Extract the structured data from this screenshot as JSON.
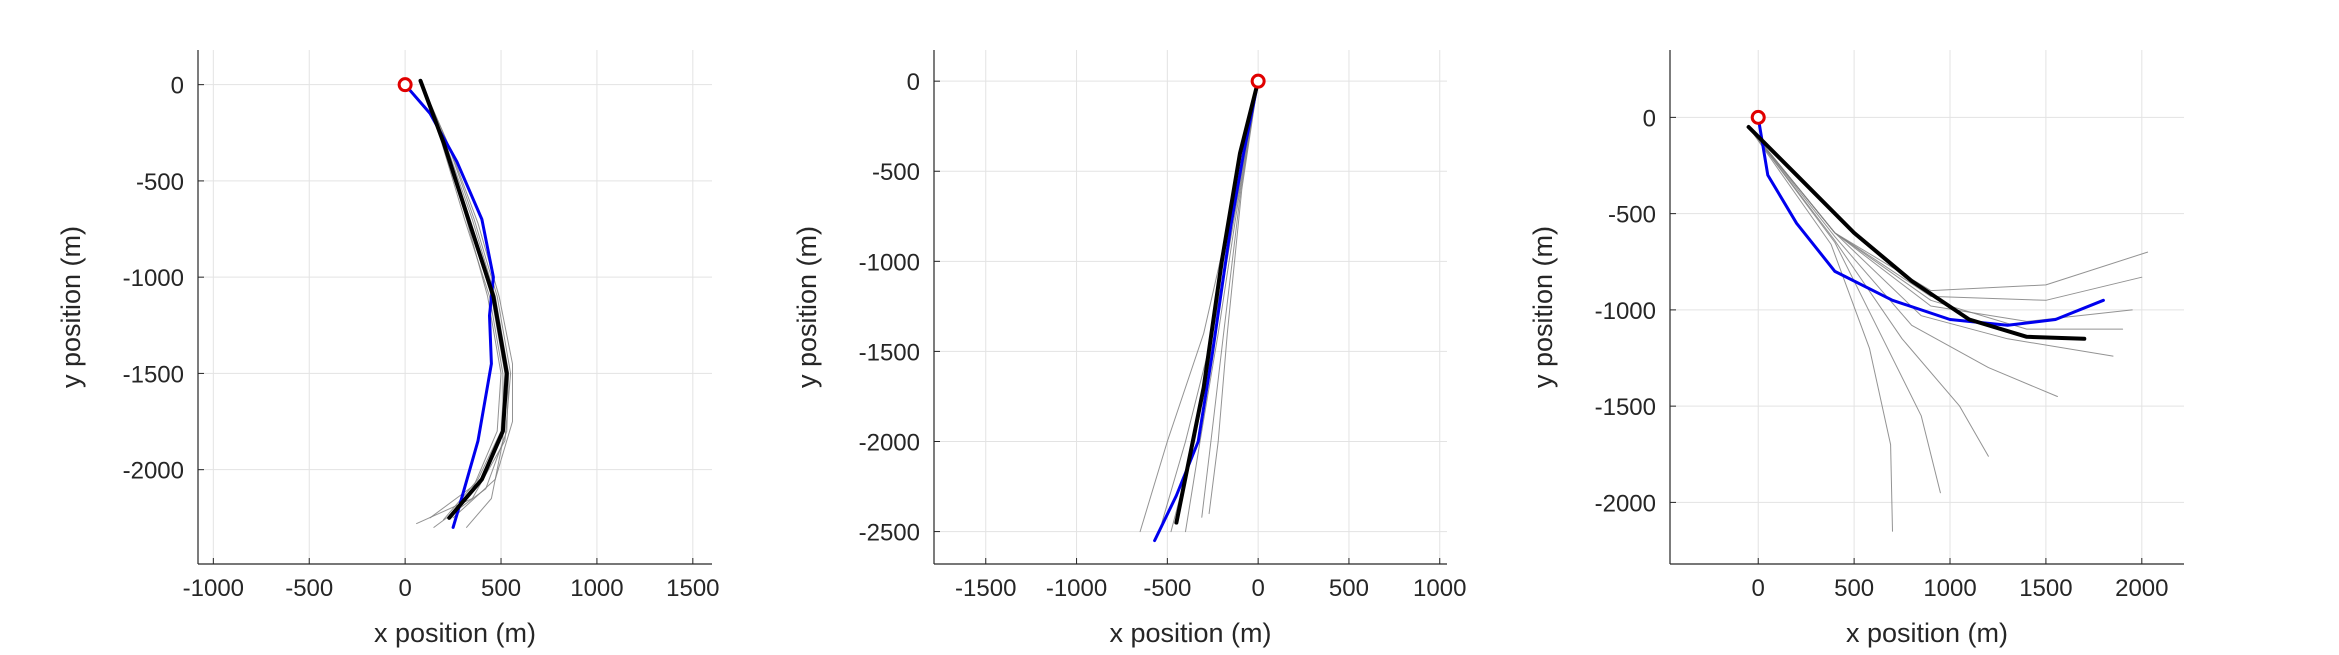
{
  "chart_data": [
    {
      "type": "line",
      "xlabel": "x position (m)",
      "ylabel": "y position (m)",
      "grid": true,
      "xlim": [
        -1080,
        1600
      ],
      "ylim": [
        -2490,
        180
      ],
      "xticks": [
        -1000,
        -500,
        0,
        500,
        1000,
        1500
      ],
      "yticks": [
        0,
        -500,
        -1000,
        -1500,
        -2000
      ],
      "series": [
        {
          "color": "#808080",
          "width": 1,
          "x": [
            80,
            220,
            360,
            480,
            550,
            520,
            350,
            60
          ],
          "values": [
            20,
            -300,
            -700,
            -1100,
            -1500,
            -1850,
            -2150,
            -2280
          ]
        },
        {
          "color": "#808080",
          "width": 1,
          "x": [
            80,
            210,
            350,
            470,
            540,
            530,
            420,
            150
          ],
          "values": [
            20,
            -300,
            -700,
            -1100,
            -1500,
            -1800,
            -2100,
            -2300
          ]
        },
        {
          "color": "#808080",
          "width": 1,
          "x": [
            80,
            200,
            330,
            450,
            520,
            500,
            380,
            200
          ],
          "values": [
            20,
            -300,
            -700,
            -1100,
            -1500,
            -1800,
            -2050,
            -2260
          ]
        },
        {
          "color": "#808080",
          "width": 1,
          "x": [
            80,
            190,
            310,
            440,
            510,
            510,
            450,
            320
          ],
          "values": [
            20,
            -300,
            -700,
            -1100,
            -1500,
            -1850,
            -2150,
            -2300
          ]
        },
        {
          "color": "#808080",
          "width": 1,
          "x": [
            80,
            230,
            380,
            490,
            560,
            560,
            470,
            250
          ],
          "values": [
            20,
            -320,
            -720,
            -1100,
            -1450,
            -1750,
            -2050,
            -2250
          ]
        },
        {
          "color": "#808080",
          "width": 1,
          "x": [
            80,
            200,
            320,
            430,
            500,
            480,
            360,
            130
          ],
          "values": [
            20,
            -300,
            -700,
            -1100,
            -1500,
            -1800,
            -2080,
            -2250
          ]
        },
        {
          "color": "#0000ee",
          "width": 3,
          "x": [
            0,
            130,
            270,
            400,
            460,
            440,
            450,
            380,
            280,
            250
          ],
          "values": [
            0,
            -150,
            -400,
            -700,
            -1000,
            -1200,
            -1450,
            -1850,
            -2200,
            -2300
          ]
        },
        {
          "color": "#000000",
          "width": 4,
          "x": [
            80,
            200,
            330,
            460,
            530,
            510,
            400,
            230
          ],
          "values": [
            20,
            -300,
            -700,
            -1100,
            -1500,
            -1800,
            -2050,
            -2250
          ]
        },
        {
          "color": "#e00000",
          "marker": "circle",
          "x": [
            0
          ],
          "values": [
            0
          ]
        }
      ]
    },
    {
      "type": "line",
      "xlabel": "x position (m)",
      "ylabel": "y position (m)",
      "grid": true,
      "xlim": [
        -1785,
        1040
      ],
      "ylim": [
        -2680,
        173
      ],
      "xticks": [
        -1500,
        -1000,
        -500,
        0,
        500,
        1000
      ],
      "yticks": [
        0,
        -500,
        -1000,
        -1500,
        -2000,
        -2500
      ],
      "series": [
        {
          "color": "#808080",
          "width": 1,
          "x": [
            0,
            -120,
            -300,
            -500,
            -650
          ],
          "values": [
            0,
            -600,
            -1400,
            -2000,
            -2500
          ]
        },
        {
          "color": "#808080",
          "width": 1,
          "x": [
            0,
            -110,
            -250,
            -400,
            -530
          ],
          "values": [
            0,
            -600,
            -1400,
            -2000,
            -2450
          ]
        },
        {
          "color": "#808080",
          "width": 1,
          "x": [
            0,
            -100,
            -220,
            -320,
            -400
          ],
          "values": [
            0,
            -600,
            -1400,
            -2000,
            -2500
          ]
        },
        {
          "color": "#808080",
          "width": 1,
          "x": [
            0,
            -90,
            -170,
            -220,
            -270
          ],
          "values": [
            0,
            -600,
            -1400,
            -2000,
            -2400
          ]
        },
        {
          "color": "#808080",
          "width": 1,
          "x": [
            0,
            -95,
            -190,
            -260,
            -310
          ],
          "values": [
            0,
            -600,
            -1400,
            -2000,
            -2420
          ]
        },
        {
          "color": "#808080",
          "width": 1,
          "x": [
            0,
            -105,
            -240,
            -350,
            -480
          ],
          "values": [
            0,
            -600,
            -1400,
            -2000,
            -2500
          ]
        },
        {
          "color": "#0000ee",
          "width": 3,
          "x": [
            0,
            -80,
            -150,
            -250,
            -330,
            -450,
            -570
          ],
          "values": [
            0,
            -400,
            -800,
            -1500,
            -2000,
            -2300,
            -2550
          ]
        },
        {
          "color": "#000000",
          "width": 4,
          "x": [
            0,
            -100,
            -200,
            -300,
            -400,
            -450
          ],
          "values": [
            0,
            -400,
            -1000,
            -1700,
            -2200,
            -2450
          ]
        },
        {
          "color": "#e00000",
          "marker": "circle",
          "x": [
            0
          ],
          "values": [
            0
          ]
        }
      ]
    },
    {
      "type": "line",
      "xlabel": "x position (m)",
      "ylabel": "y position (m)",
      "grid": true,
      "xlim": [
        -460,
        2220
      ],
      "ylim": [
        -2320,
        350
      ],
      "xticks": [
        0,
        500,
        1000,
        1500,
        2000
      ],
      "yticks": [
        0,
        -500,
        -1000,
        -1500,
        -2000
      ],
      "series": [
        {
          "color": "#808080",
          "width": 1,
          "x": [
            -50,
            400,
            900,
            1500,
            2030
          ],
          "values": [
            -50,
            -600,
            -900,
            -870,
            -700
          ]
        },
        {
          "color": "#808080",
          "width": 1,
          "x": [
            -50,
            400,
            900,
            1500,
            2000
          ],
          "values": [
            -50,
            -600,
            -930,
            -950,
            -830
          ]
        },
        {
          "color": "#808080",
          "width": 1,
          "x": [
            -50,
            400,
            900,
            1400,
            1950
          ],
          "values": [
            -50,
            -600,
            -980,
            -1060,
            -1000
          ]
        },
        {
          "color": "#808080",
          "width": 1,
          "x": [
            -50,
            400,
            850,
            1300,
            1850
          ],
          "values": [
            -50,
            -600,
            -1030,
            -1150,
            -1240
          ]
        },
        {
          "color": "#808080",
          "width": 1,
          "x": [
            -50,
            400,
            800,
            1200,
            1560
          ],
          "values": [
            -50,
            -620,
            -1080,
            -1300,
            -1450
          ]
        },
        {
          "color": "#808080",
          "width": 1,
          "x": [
            -50,
            400,
            750,
            1050,
            1200
          ],
          "values": [
            -50,
            -640,
            -1150,
            -1500,
            -1760
          ]
        },
        {
          "color": "#808080",
          "width": 1,
          "x": [
            -50,
            400,
            650,
            850,
            950
          ],
          "values": [
            -50,
            -650,
            -1150,
            -1550,
            -1950
          ]
        },
        {
          "color": "#808080",
          "width": 1,
          "x": [
            -50,
            380,
            580,
            690,
            700
          ],
          "values": [
            -50,
            -660,
            -1200,
            -1700,
            -2150
          ]
        },
        {
          "color": "#808080",
          "width": 1,
          "x": [
            -50,
            400,
            900,
            1400,
            1900
          ],
          "values": [
            -50,
            -600,
            -950,
            -1100,
            -1100
          ]
        },
        {
          "color": "#0000ee",
          "width": 3,
          "x": [
            0,
            50,
            200,
            400,
            700,
            1000,
            1300,
            1550,
            1800
          ],
          "values": [
            0,
            -300,
            -550,
            -800,
            -950,
            -1050,
            -1080,
            -1050,
            -950
          ]
        },
        {
          "color": "#000000",
          "width": 4,
          "x": [
            -50,
            200,
            500,
            800,
            1100,
            1400,
            1700
          ],
          "values": [
            -50,
            -300,
            -600,
            -850,
            -1050,
            -1140,
            -1150
          ]
        },
        {
          "color": "#e00000",
          "marker": "circle",
          "x": [
            0
          ],
          "values": [
            0
          ]
        }
      ]
    }
  ]
}
